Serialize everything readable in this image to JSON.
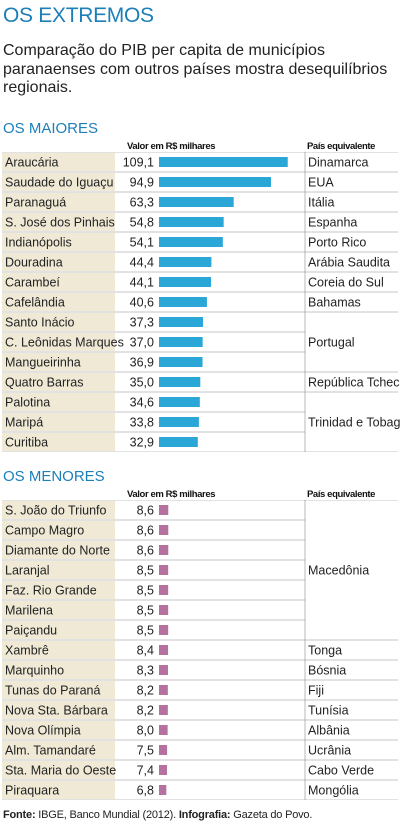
{
  "title": "OS EXTREMOS",
  "subtitle": "Comparação do PIB per capita de municípios paranaenses com outros países mostra desequilíbrios regionais.",
  "column_headers": {
    "value": "Valor em R$ milhares",
    "country": "País equivalente"
  },
  "colors": {
    "title": "#1c7fb8",
    "bar_maiores": "#2aa7d6",
    "bar_menores": "#b5729f",
    "row_shade": "#efe9d6",
    "rule": "#8a8a8a"
  },
  "footer": {
    "source_label": "Fonte:",
    "source_text": "IBGE, Banco Mundial (2012).",
    "credit_label": "Infografia:",
    "credit_text": "Gazeta do Povo."
  },
  "chart_data": [
    {
      "type": "bar",
      "title": "OS MAIORES",
      "categories": [
        "Araucária",
        "Saudade do Iguaçu",
        "Paranaguá",
        "S. José dos Pinhais",
        "Indianópolis",
        "Douradina",
        "Carambeí",
        "Cafelândia",
        "Santo Inácio",
        "C. Leônidas Marques",
        "Mangueirinha",
        "Quatro Barras",
        "Palotina",
        "Maripá",
        "Curitiba"
      ],
      "values": [
        109.1,
        94.9,
        63.3,
        54.8,
        54.1,
        44.4,
        44.1,
        40.6,
        37.3,
        37.0,
        36.9,
        35.0,
        34.6,
        33.8,
        32.9
      ],
      "value_labels": [
        "109,1",
        "94,9",
        "63,3",
        "54,8",
        "54,1",
        "44,4",
        "44,1",
        "40,6",
        "37,3",
        "37,0",
        "36,9",
        "35,0",
        "34,6",
        "33,8",
        "32,9"
      ],
      "countries": [
        {
          "label": "Dinamarca",
          "rows": [
            0,
            0
          ]
        },
        {
          "label": "EUA",
          "rows": [
            1,
            1
          ]
        },
        {
          "label": "Itália",
          "rows": [
            2,
            2
          ]
        },
        {
          "label": "Espanha",
          "rows": [
            3,
            3
          ]
        },
        {
          "label": "Porto Rico",
          "rows": [
            4,
            4
          ]
        },
        {
          "label": "Arábia Saudita",
          "rows": [
            5,
            5
          ]
        },
        {
          "label": "Coreia do Sul",
          "rows": [
            6,
            6
          ]
        },
        {
          "label": "Bahamas",
          "rows": [
            7,
            7
          ]
        },
        {
          "label": "Portugal",
          "rows": [
            8,
            10
          ]
        },
        {
          "label": "República Tcheca",
          "rows": [
            11,
            11
          ]
        },
        {
          "label": "Trinidad e Tobago",
          "rows": [
            12,
            14
          ]
        }
      ]
    },
    {
      "type": "bar",
      "title": "OS MENORES",
      "categories": [
        "S. João do Triunfo",
        "Campo Magro",
        "Diamante do Norte",
        "Laranjal",
        "Faz. Rio Grande",
        "Marilena",
        "Paiçandu",
        "Xambrê",
        "Marquinho",
        "Tunas do Paraná",
        "Nova Sta. Bárbara",
        "Nova Olímpia",
        "Alm. Tamandaré",
        "Sta. Maria do Oeste",
        "Piraquara"
      ],
      "values": [
        8.6,
        8.6,
        8.6,
        8.5,
        8.5,
        8.5,
        8.5,
        8.4,
        8.3,
        8.2,
        8.2,
        8.0,
        7.5,
        7.4,
        6.8
      ],
      "value_labels": [
        "8,6",
        "8,6",
        "8,6",
        "8,5",
        "8,5",
        "8,5",
        "8,5",
        "8,4",
        "8,3",
        "8,2",
        "8,2",
        "8,0",
        "7,5",
        "7,4",
        "6,8"
      ],
      "countries": [
        {
          "label": "Macedônia",
          "rows": [
            0,
            6
          ]
        },
        {
          "label": "Tonga",
          "rows": [
            7,
            7
          ]
        },
        {
          "label": "Bósnia",
          "rows": [
            8,
            8
          ]
        },
        {
          "label": "Fiji",
          "rows": [
            9,
            9
          ]
        },
        {
          "label": "Tunísia",
          "rows": [
            10,
            10
          ]
        },
        {
          "label": "Albânia",
          "rows": [
            11,
            11
          ]
        },
        {
          "label": "Ucrânia",
          "rows": [
            12,
            12
          ]
        },
        {
          "label": "Cabo Verde",
          "rows": [
            13,
            13
          ]
        },
        {
          "label": "Mongólia",
          "rows": [
            14,
            14
          ]
        }
      ]
    }
  ]
}
